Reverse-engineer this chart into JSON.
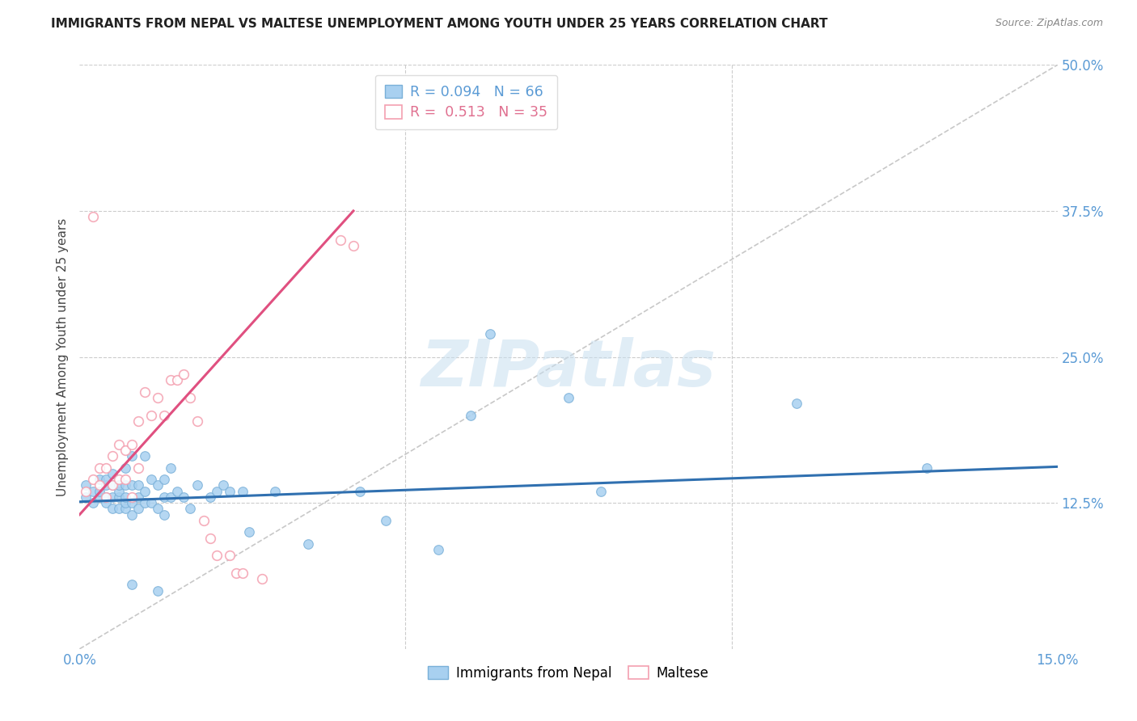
{
  "title": "IMMIGRANTS FROM NEPAL VS MALTESE UNEMPLOYMENT AMONG YOUTH UNDER 25 YEARS CORRELATION CHART",
  "source": "Source: ZipAtlas.com",
  "ylabel": "Unemployment Among Youth under 25 years",
  "xlim": [
    0.0,
    0.15
  ],
  "ylim": [
    0.0,
    0.5
  ],
  "nepal_color_fill": "#a8d0f0",
  "nepal_color_edge": "#7ab0d8",
  "maltese_color_fill": "#ffffff",
  "maltese_color_edge": "#f4a0b0",
  "nepal_line_color": "#3070b0",
  "maltese_line_color": "#e05080",
  "diagonal_color": "#cccccc",
  "watermark": "ZIPatlas",
  "background_color": "#ffffff",
  "nepal_R": 0.094,
  "maltese_R": 0.513,
  "nepal_N": 66,
  "maltese_N": 35,
  "nepal_x": [
    0.001,
    0.001,
    0.002,
    0.002,
    0.003,
    0.003,
    0.003,
    0.004,
    0.004,
    0.004,
    0.004,
    0.005,
    0.005,
    0.005,
    0.005,
    0.006,
    0.006,
    0.006,
    0.006,
    0.007,
    0.007,
    0.007,
    0.007,
    0.007,
    0.008,
    0.008,
    0.008,
    0.008,
    0.009,
    0.009,
    0.009,
    0.01,
    0.01,
    0.01,
    0.011,
    0.011,
    0.012,
    0.012,
    0.013,
    0.013,
    0.013,
    0.014,
    0.014,
    0.015,
    0.016,
    0.017,
    0.018,
    0.02,
    0.021,
    0.022,
    0.023,
    0.025,
    0.026,
    0.03,
    0.035,
    0.043,
    0.047,
    0.055,
    0.06,
    0.063,
    0.075,
    0.08,
    0.11,
    0.13,
    0.008,
    0.012
  ],
  "nepal_y": [
    0.13,
    0.14,
    0.125,
    0.135,
    0.13,
    0.135,
    0.145,
    0.125,
    0.13,
    0.14,
    0.145,
    0.12,
    0.13,
    0.14,
    0.15,
    0.12,
    0.13,
    0.135,
    0.14,
    0.12,
    0.125,
    0.13,
    0.14,
    0.155,
    0.115,
    0.125,
    0.14,
    0.165,
    0.12,
    0.13,
    0.14,
    0.125,
    0.135,
    0.165,
    0.125,
    0.145,
    0.12,
    0.14,
    0.115,
    0.13,
    0.145,
    0.13,
    0.155,
    0.135,
    0.13,
    0.12,
    0.14,
    0.13,
    0.135,
    0.14,
    0.135,
    0.135,
    0.1,
    0.135,
    0.09,
    0.135,
    0.11,
    0.085,
    0.2,
    0.27,
    0.215,
    0.135,
    0.21,
    0.155,
    0.055,
    0.05
  ],
  "maltese_x": [
    0.001,
    0.002,
    0.002,
    0.003,
    0.003,
    0.004,
    0.004,
    0.005,
    0.005,
    0.006,
    0.006,
    0.007,
    0.007,
    0.008,
    0.008,
    0.009,
    0.009,
    0.01,
    0.011,
    0.012,
    0.013,
    0.014,
    0.015,
    0.016,
    0.017,
    0.018,
    0.019,
    0.02,
    0.021,
    0.023,
    0.024,
    0.025,
    0.028,
    0.04,
    0.042
  ],
  "maltese_y": [
    0.135,
    0.145,
    0.37,
    0.14,
    0.155,
    0.13,
    0.155,
    0.14,
    0.165,
    0.145,
    0.175,
    0.145,
    0.17,
    0.13,
    0.175,
    0.155,
    0.195,
    0.22,
    0.2,
    0.215,
    0.2,
    0.23,
    0.23,
    0.235,
    0.215,
    0.195,
    0.11,
    0.095,
    0.08,
    0.08,
    0.065,
    0.065,
    0.06,
    0.35,
    0.345
  ]
}
